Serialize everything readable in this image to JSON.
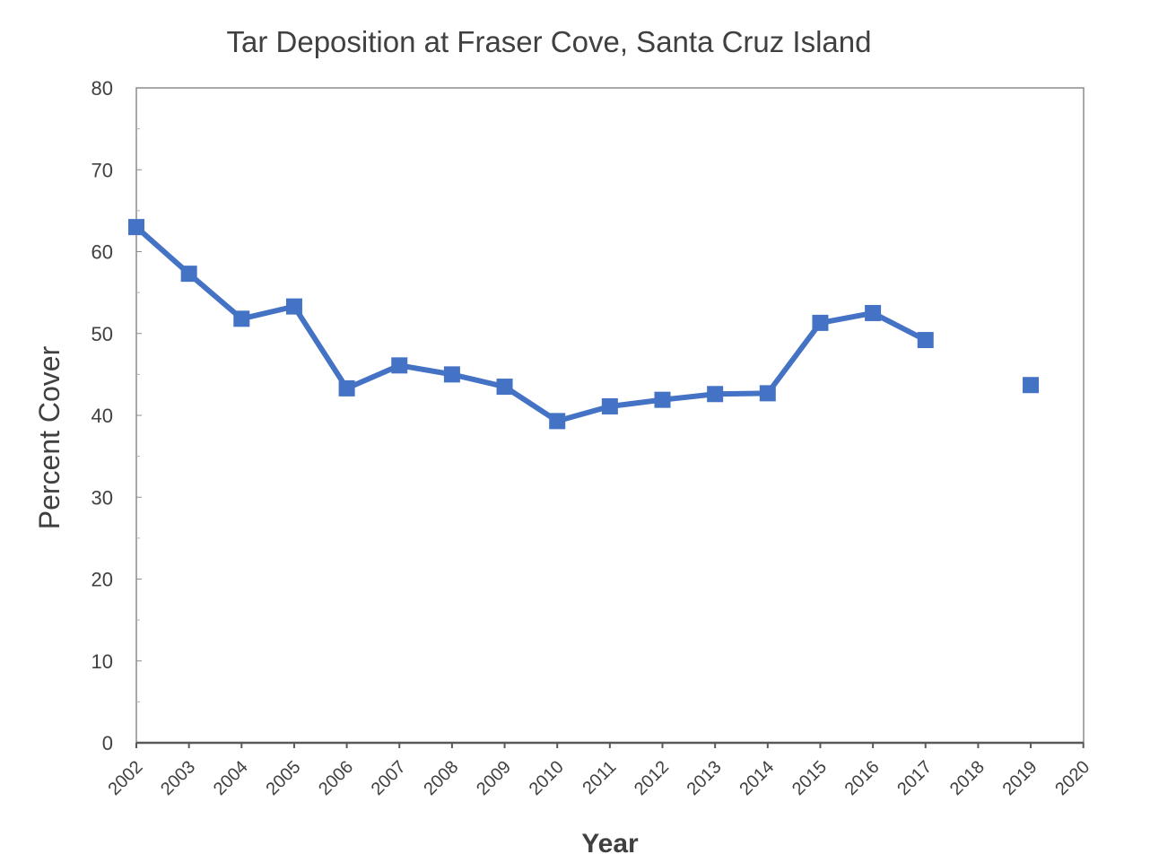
{
  "chart_data": {
    "type": "line",
    "title": "Tar Deposition at Fraser Cove, Santa Cruz Island",
    "xlabel": "Year",
    "ylabel": "Percent Cover",
    "ylim": [
      0,
      80
    ],
    "y_ticks": [
      "0",
      "10",
      "20",
      "30",
      "40",
      "50",
      "60",
      "70",
      "80"
    ],
    "x_ticks": [
      "2002",
      "2003",
      "2004",
      "2005",
      "2006",
      "2007",
      "2008",
      "2009",
      "2010",
      "2011",
      "2012",
      "2013",
      "2014",
      "2015",
      "2016",
      "2017",
      "2018",
      "2019",
      "2020"
    ],
    "grid": false,
    "legend": "none",
    "series": [
      {
        "color": "#4472C4",
        "marker": "square",
        "x": [
          2002,
          2003,
          2004,
          2005,
          2006,
          2007,
          2008,
          2009,
          2010,
          2011,
          2012,
          2013,
          2014,
          2015,
          2016,
          2017,
          2018,
          2019
        ],
        "y": [
          63.0,
          57.3,
          51.8,
          53.3,
          43.3,
          46.1,
          45.0,
          43.5,
          39.3,
          41.1,
          41.9,
          42.6,
          42.7,
          51.3,
          52.5,
          49.2,
          null,
          43.7
        ]
      }
    ]
  }
}
